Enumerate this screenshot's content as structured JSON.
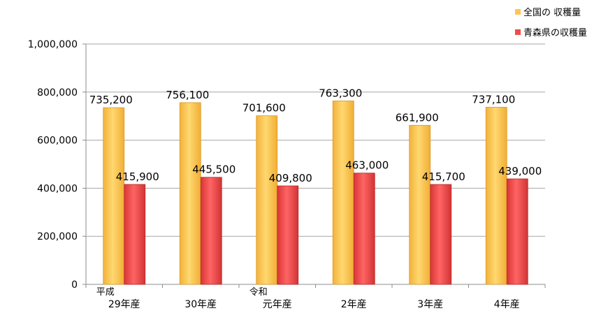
{
  "chart_data": {
    "type": "bar",
    "categories": [
      "29年産",
      "30年産",
      "元年産",
      "2年産",
      "3年産",
      "4年産"
    ],
    "era_labels": [
      "平成",
      "",
      "令和",
      "",
      "",
      ""
    ],
    "series": [
      {
        "name": "全国の 収穫量",
        "color": "#FFC54F",
        "values": [
          735200,
          756100,
          701600,
          763300,
          661900,
          737100
        ]
      },
      {
        "name": "青森県の収穫量",
        "color": "#F24B4B",
        "values": [
          415900,
          445500,
          409800,
          463000,
          415700,
          439000
        ]
      }
    ],
    "data_labels": [
      [
        "735,200",
        "756,100",
        "701,600",
        "763,300",
        "661,900",
        "737,100"
      ],
      [
        "415,900",
        "445,500",
        "409,800",
        "463,000",
        "415,700",
        "439,000"
      ]
    ],
    "y_ticks": [
      "0",
      "200,000",
      "400,000",
      "600,000",
      "800,000",
      "1,000,000"
    ],
    "ylim": [
      0,
      1000000
    ],
    "grid": true,
    "legend_position": "top-right"
  }
}
